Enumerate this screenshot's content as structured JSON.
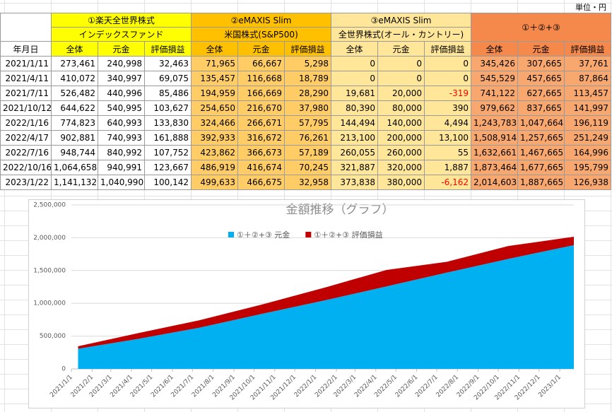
{
  "unit": "単位・円",
  "table": {
    "row_header": "年月日",
    "groups": [
      {
        "lines": [
          "①楽天全世界株式",
          "インデックスファンド"
        ]
      },
      {
        "lines": [
          "②eMAXIS Slim",
          "米国株式(S&P500)"
        ]
      },
      {
        "lines": [
          "③eMAXIS Slim",
          "全世界株式(オール・カントリー)"
        ]
      },
      {
        "lines": [
          "①＋②+③"
        ]
      }
    ],
    "subheaders": [
      "全体",
      "元金",
      "評価損益",
      "全体",
      "元金",
      "評価損益",
      "全体",
      "元金",
      "評価損益",
      "全体",
      "元金",
      "評価損益"
    ],
    "rows": [
      [
        "2021/1/11",
        "273,461",
        "240,998",
        "32,463",
        "71,965",
        "66,667",
        "5,298",
        "0",
        "0",
        "0",
        "345,426",
        "307,665",
        "37,761"
      ],
      [
        "2021/4/11",
        "410,072",
        "340,997",
        "69,075",
        "135,457",
        "116,668",
        "18,789",
        "0",
        "0",
        "0",
        "545,529",
        "457,665",
        "87,864"
      ],
      [
        "2021/7/11",
        "526,482",
        "440,996",
        "85,486",
        "194,959",
        "166,669",
        "28,290",
        "19,681",
        "20,000",
        "-319",
        "741,122",
        "627,665",
        "113,457"
      ],
      [
        "2021/10/12",
        "644,622",
        "540,995",
        "103,627",
        "254,650",
        "216,670",
        "37,980",
        "80,390",
        "80,000",
        "390",
        "979,662",
        "837,665",
        "141,997"
      ],
      [
        "2022/1/16",
        "774,823",
        "640,993",
        "133,830",
        "324,466",
        "266,671",
        "57,795",
        "144,494",
        "140,000",
        "4,494",
        "1,243,783",
        "1,047,664",
        "196,119"
      ],
      [
        "2022/4/17",
        "902,881",
        "740,993",
        "161,888",
        "392,933",
        "316,672",
        "76,261",
        "213,100",
        "200,000",
        "13,100",
        "1,508,914",
        "1,257,665",
        "251,249"
      ],
      [
        "2022/7/16",
        "948,744",
        "840,992",
        "107,752",
        "423,862",
        "366,673",
        "57,189",
        "260,055",
        "260,000",
        "55",
        "1,632,661",
        "1,467,665",
        "164,996"
      ],
      [
        "2022/10/16",
        "1,064,658",
        "940,991",
        "123,667",
        "486,919",
        "416,674",
        "70,245",
        "321,887",
        "320,000",
        "1,887",
        "1,873,464",
        "1,677,665",
        "195,799"
      ],
      [
        "2023/1/22",
        "1,141,132",
        "1,040,990",
        "100,142",
        "499,633",
        "466,675",
        "32,958",
        "373,838",
        "380,000",
        "-6,162",
        "2,014,603",
        "1,887,665",
        "126,938"
      ]
    ]
  },
  "chart_data": {
    "type": "stacked_area",
    "title": "金額推移（グラフ）",
    "x": [
      "2021/1/11",
      "2021/4/11",
      "2021/7/11",
      "2021/10/12",
      "2022/1/16",
      "2022/4/17",
      "2022/7/16",
      "2022/10/16",
      "2023/1/22"
    ],
    "series": [
      {
        "name": "①＋②+③ 元金",
        "color": "#00b0f0",
        "values": [
          307665,
          457665,
          627665,
          837665,
          1047664,
          1257665,
          1467665,
          1677665,
          1887665
        ]
      },
      {
        "name": "①＋②+③ 評価損益",
        "color": "#c00000",
        "values": [
          37761,
          87864,
          113457,
          141997,
          196119,
          251249,
          164996,
          195799,
          126938
        ]
      }
    ],
    "xlim": [
      "2021/1/1",
      "2023/1/22"
    ],
    "xticks": [
      "2021/1/1",
      "2021/2/1",
      "2021/3/1",
      "2021/4/1",
      "2021/5/1",
      "2021/6/1",
      "2021/7/1",
      "2021/8/1",
      "2021/9/1",
      "2021/10/1",
      "2021/11/1",
      "2021/12/1",
      "2022/1/1",
      "2022/2/1",
      "2022/3/1",
      "2022/4/1",
      "2022/5/1",
      "2022/6/1",
      "2022/7/1",
      "2022/8/1",
      "2022/9/1",
      "2022/10/1",
      "2022/11/1",
      "2022/12/1",
      "2023/1/1"
    ],
    "ylim": [
      0,
      2500000
    ],
    "yticks": [
      0,
      {
        "value": 500000,
        "label": "500,000"
      },
      {
        "value": 1000000,
        "label": "1,000,000"
      },
      {
        "value": 1500000,
        "label": "1,500,000"
      },
      {
        "value": 2000000,
        "label": "2,000,000"
      },
      {
        "value": 2500000,
        "label": "2,500,000"
      }
    ],
    "grid": true,
    "legend": "top"
  }
}
